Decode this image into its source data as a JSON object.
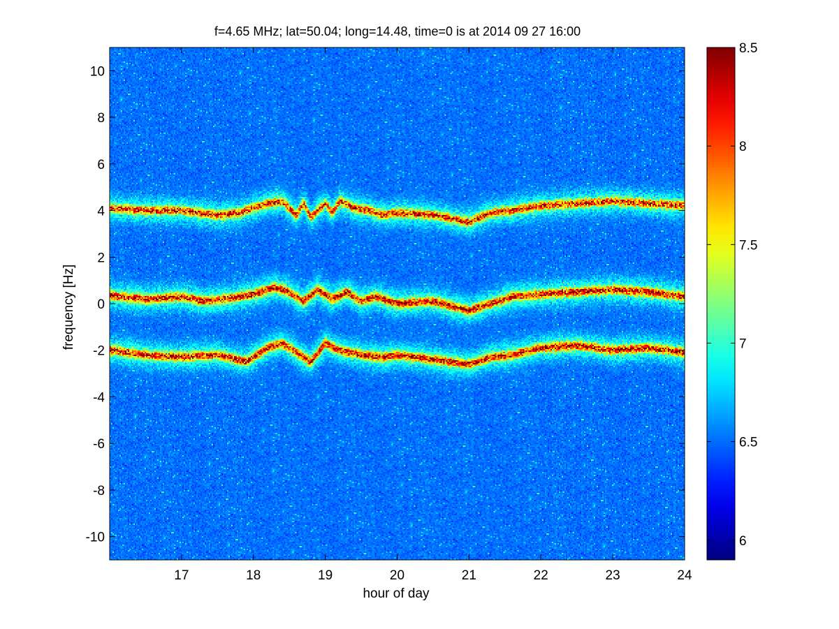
{
  "chart_data": {
    "type": "heatmap",
    "title": "f=4.65 MHz;  lat=50.04; long=14.48, time=0 is at 2014 09 27 16:00",
    "xlabel": "hour of day",
    "ylabel": "frequency [Hz]",
    "xlim": [
      16,
      24
    ],
    "ylim": [
      -11,
      11
    ],
    "x_ticks": [
      17,
      18,
      19,
      20,
      21,
      22,
      23,
      24
    ],
    "y_ticks": [
      -10,
      -8,
      -6,
      -4,
      -2,
      0,
      2,
      4,
      6,
      8,
      10
    ],
    "colorbar": {
      "range": [
        5.9,
        8.5
      ],
      "ticks": [
        6,
        6.5,
        7,
        7.5,
        8,
        8.5
      ],
      "colormap": "jet"
    },
    "background_level": 6.4,
    "bands": [
      {
        "x": [
          16.0,
          16.5,
          17.0,
          17.5,
          17.8,
          18.0,
          18.2,
          18.4,
          18.6,
          18.7,
          18.8,
          19.0,
          19.1,
          19.2,
          19.4,
          19.6,
          19.8,
          20.0,
          20.5,
          21.0,
          21.3,
          21.6,
          22.0,
          22.5,
          23.0,
          23.5,
          24.0
        ],
        "y": [
          4.1,
          4.0,
          4.0,
          3.8,
          3.9,
          4.1,
          4.3,
          4.4,
          3.8,
          4.3,
          3.7,
          4.3,
          3.9,
          4.4,
          4.1,
          4.0,
          3.8,
          3.9,
          3.8,
          3.5,
          3.9,
          4.0,
          4.2,
          4.3,
          4.4,
          4.3,
          4.2
        ],
        "peak": 8.3
      },
      {
        "x": [
          16.0,
          16.5,
          17.0,
          17.3,
          17.6,
          18.0,
          18.3,
          18.5,
          18.7,
          18.9,
          19.1,
          19.3,
          19.5,
          19.7,
          20.0,
          20.5,
          21.0,
          21.3,
          21.6,
          22.0,
          22.5,
          23.0,
          23.5,
          24.0
        ],
        "y": [
          0.35,
          0.2,
          0.3,
          0.1,
          0.2,
          0.4,
          0.7,
          0.5,
          0.1,
          0.6,
          0.2,
          0.5,
          0.1,
          0.3,
          0.0,
          0.1,
          -0.3,
          0.0,
          0.3,
          0.4,
          0.5,
          0.6,
          0.5,
          0.3
        ],
        "peak": 8.4
      },
      {
        "x": [
          16.0,
          16.5,
          17.0,
          17.5,
          17.9,
          18.2,
          18.4,
          18.6,
          18.8,
          19.0,
          19.2,
          19.5,
          19.8,
          20.0,
          20.5,
          21.0,
          21.3,
          21.6,
          22.0,
          22.5,
          23.0,
          23.5,
          24.0
        ],
        "y": [
          -2.0,
          -2.2,
          -2.3,
          -2.2,
          -2.5,
          -1.9,
          -1.7,
          -2.1,
          -2.5,
          -1.7,
          -2.0,
          -2.2,
          -2.3,
          -2.2,
          -2.4,
          -2.6,
          -2.3,
          -2.2,
          -1.9,
          -1.8,
          -2.0,
          -1.9,
          -2.1
        ],
        "peak": 8.4
      }
    ]
  }
}
